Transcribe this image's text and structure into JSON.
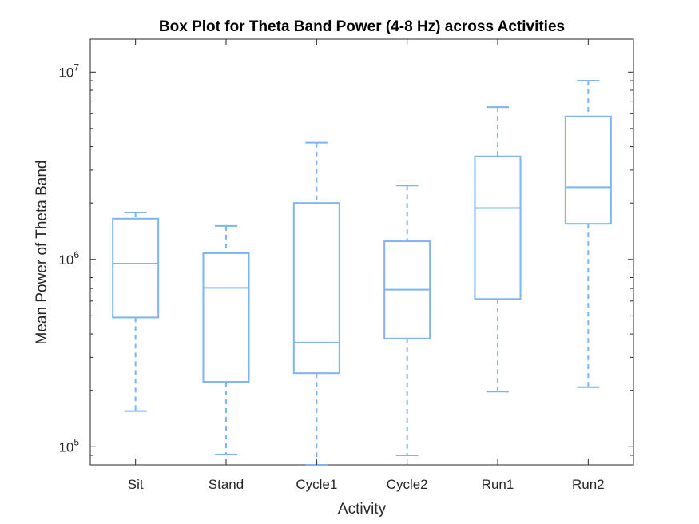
{
  "chart_data": {
    "type": "box",
    "title": "Box Plot for Theta Band Power (4-8 Hz) across Activities",
    "xlabel": "Activity",
    "ylabel": "Mean Power of Theta Band",
    "yscale": "log",
    "ylim": [
      80000,
      15000000
    ],
    "yticks": [
      {
        "value": 100000,
        "base": "10",
        "exp": "5"
      },
      {
        "value": 1000000,
        "base": "10",
        "exp": "6"
      },
      {
        "value": 10000000,
        "base": "10",
        "exp": "7"
      }
    ],
    "categories": [
      "Sit",
      "Stand",
      "Cycle1",
      "Cycle2",
      "Run1",
      "Run2"
    ],
    "boxes": [
      {
        "name": "Sit",
        "min": 155000,
        "q1": 490000,
        "median": 950000,
        "q3": 1650000,
        "max": 1780000
      },
      {
        "name": "Stand",
        "min": 91000,
        "q1": 222000,
        "median": 705000,
        "q3": 1080000,
        "max": 1510000
      },
      {
        "name": "Cycle1",
        "min": 80000,
        "q1": 247000,
        "median": 360000,
        "q3": 2000000,
        "max": 4200000
      },
      {
        "name": "Cycle2",
        "min": 90000,
        "q1": 378000,
        "median": 690000,
        "q3": 1250000,
        "max": 2480000
      },
      {
        "name": "Run1",
        "min": 197000,
        "q1": 615000,
        "median": 1880000,
        "q3": 3550000,
        "max": 6500000
      },
      {
        "name": "Run2",
        "min": 208000,
        "q1": 1550000,
        "median": 2430000,
        "q3": 5800000,
        "max": 9000000
      }
    ],
    "box_color": "#80b3f5",
    "grid": false
  }
}
